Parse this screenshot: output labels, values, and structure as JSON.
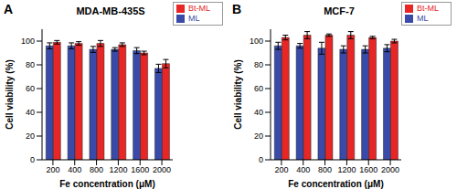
{
  "chart_data": [
    {
      "type": "bar",
      "panel": "A",
      "title": "MDA-MB-435S",
      "x_label": "Fe concentration (μM)",
      "y_label": "Cell viability (%)",
      "categories": [
        200,
        400,
        800,
        1200,
        1600,
        2000
      ],
      "series": [
        {
          "name": "ML",
          "color": "#3a4aa8",
          "values": [
            96,
            96,
            93,
            93,
            92,
            77
          ],
          "errors": [
            2.5,
            2.5,
            2.5,
            1.5,
            2.5,
            3.5
          ]
        },
        {
          "name": "Bt-ML",
          "color": "#e82626",
          "values": [
            99,
            98,
            98,
            97,
            90,
            81
          ],
          "errors": [
            1.5,
            1.5,
            2.5,
            1.5,
            1.5,
            3.5
          ]
        }
      ],
      "ylim": [
        0,
        110
      ],
      "yticks": [
        0,
        20,
        40,
        60,
        80,
        100
      ],
      "grid": false,
      "legend": "top right"
    },
    {
      "type": "bar",
      "panel": "B",
      "title": "MCF-7",
      "x_label": "Fe concentration (μM)",
      "y_label": "Cell viability (%)",
      "categories": [
        200,
        400,
        800,
        1200,
        1600,
        2000
      ],
      "series": [
        {
          "name": "ML",
          "color": "#3a4aa8",
          "values": [
            96,
            96,
            94,
            93,
            93,
            94
          ],
          "errors": [
            3,
            2,
            5,
            3,
            3,
            3
          ]
        },
        {
          "name": "Bt-ML",
          "color": "#e82626",
          "values": [
            103,
            105,
            105,
            105,
            103,
            100
          ],
          "errors": [
            2,
            3,
            1,
            3,
            1,
            1.5
          ]
        }
      ],
      "ylim": [
        0,
        110
      ],
      "yticks": [
        0,
        20,
        40,
        60,
        80,
        100
      ],
      "grid": false,
      "legend": "top right"
    }
  ]
}
